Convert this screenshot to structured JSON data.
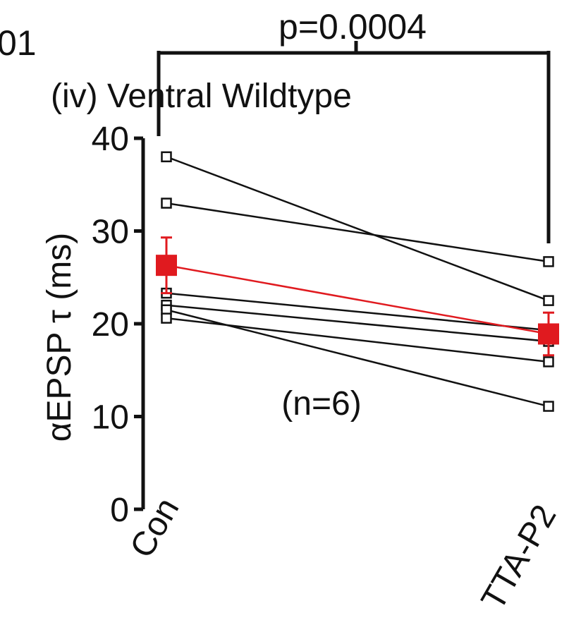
{
  "panel_fragment": "01",
  "significance": {
    "label": "p=0.0004"
  },
  "chart_data": {
    "type": "scatter",
    "title": "(iv) Ventral Wildtype",
    "ylabel": "αEPSP τ (ms)",
    "xlabel": "",
    "categories": [
      "Con",
      "TTA-P2"
    ],
    "ylim": [
      0,
      40
    ],
    "yticks": [
      0,
      10,
      20,
      30,
      40
    ],
    "n_label": "(n=6)",
    "paired_lines": [
      {
        "values": [
          38.0,
          22.5
        ]
      },
      {
        "values": [
          33.0,
          26.7
        ]
      },
      {
        "values": [
          23.3,
          19.3
        ]
      },
      {
        "values": [
          22.0,
          18.1
        ]
      },
      {
        "values": [
          21.5,
          11.1
        ]
      },
      {
        "values": [
          20.6,
          15.9
        ]
      }
    ],
    "mean": {
      "values": [
        26.3,
        18.9
      ],
      "error": [
        3.0,
        2.3
      ]
    },
    "colors": {
      "individual": "#111111",
      "mean": "#e01a1f"
    }
  }
}
